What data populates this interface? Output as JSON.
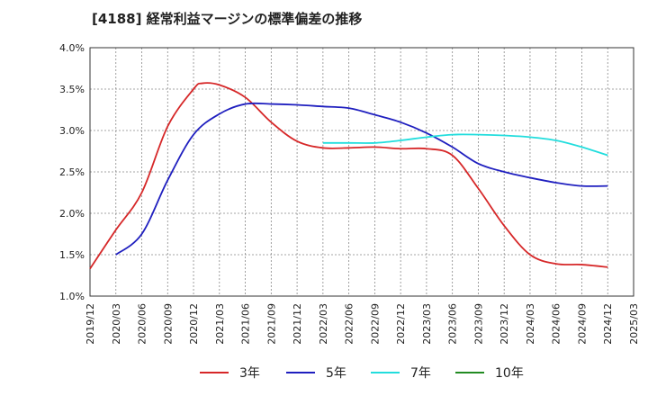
{
  "chart_data": {
    "type": "line",
    "title": "[4188]  経常利益マージンの標準偏差の推移",
    "xlabel": "",
    "ylabel": "",
    "x_ticks": [
      "2019/12",
      "2020/03",
      "2020/06",
      "2020/09",
      "2020/12",
      "2021/03",
      "2021/06",
      "2021/09",
      "2021/12",
      "2022/03",
      "2022/06",
      "2022/09",
      "2022/12",
      "2023/03",
      "2023/06",
      "2023/09",
      "2023/12",
      "2024/03",
      "2024/06",
      "2024/09",
      "2024/12",
      "2025/03"
    ],
    "y_ticks": [
      "1.0%",
      "1.5%",
      "2.0%",
      "2.5%",
      "3.0%",
      "3.5%",
      "4.0%"
    ],
    "ylim": [
      1.0,
      4.0
    ],
    "grid": true,
    "legend_position": "bottom",
    "series": [
      {
        "name": "3年",
        "color": "#d62728",
        "x": [
          "2019/12",
          "2020/03",
          "2020/06",
          "2020/09",
          "2020/12",
          "2021/01",
          "2021/03",
          "2021/06",
          "2021/09",
          "2021/12",
          "2022/03",
          "2022/06",
          "2022/09",
          "2022/12",
          "2023/03",
          "2023/06",
          "2023/09",
          "2023/12",
          "2024/03",
          "2024/06",
          "2024/09",
          "2024/12"
        ],
        "values": [
          1.33,
          1.8,
          2.25,
          3.05,
          3.5,
          3.57,
          3.55,
          3.4,
          3.1,
          2.87,
          2.79,
          2.79,
          2.8,
          2.78,
          2.78,
          2.7,
          2.3,
          1.85,
          1.5,
          1.39,
          1.38,
          1.35
        ]
      },
      {
        "name": "5年",
        "color": "#1f1fbf",
        "x": [
          "2020/03",
          "2020/06",
          "2020/09",
          "2020/12",
          "2021/03",
          "2021/06",
          "2021/09",
          "2021/12",
          "2022/03",
          "2022/06",
          "2022/09",
          "2022/12",
          "2023/03",
          "2023/06",
          "2023/09",
          "2023/12",
          "2024/03",
          "2024/06",
          "2024/09",
          "2024/12"
        ],
        "values": [
          1.5,
          1.75,
          2.4,
          2.95,
          3.2,
          3.32,
          3.32,
          3.31,
          3.29,
          3.27,
          3.19,
          3.1,
          2.97,
          2.8,
          2.6,
          2.5,
          2.43,
          2.37,
          2.33,
          2.33
        ]
      },
      {
        "name": "7年",
        "color": "#22dddd",
        "x": [
          "2022/03",
          "2022/06",
          "2022/09",
          "2022/12",
          "2023/03",
          "2023/06",
          "2023/09",
          "2023/12",
          "2024/03",
          "2024/06",
          "2024/09",
          "2024/12"
        ],
        "values": [
          2.85,
          2.85,
          2.85,
          2.88,
          2.92,
          2.95,
          2.95,
          2.94,
          2.92,
          2.88,
          2.8,
          2.7
        ]
      },
      {
        "name": "10年",
        "color": "#228b22",
        "x": [],
        "values": []
      }
    ]
  }
}
